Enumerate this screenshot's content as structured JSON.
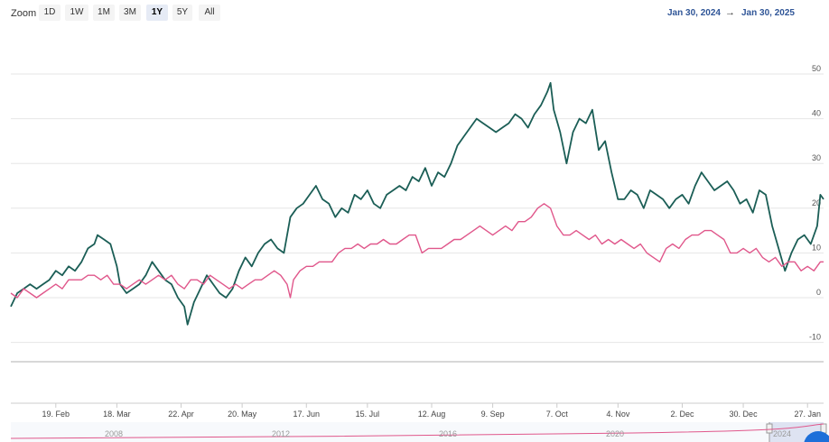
{
  "toolbar": {
    "zoom_label": "Zoom",
    "buttons": [
      "1D",
      "1W",
      "1M",
      "3M",
      "1Y",
      "5Y",
      "All"
    ],
    "active": "1Y",
    "range_from": "Jan 30, 2024",
    "range_arrow": "→",
    "range_to": "Jan 30, 2025"
  },
  "navigator": {
    "labels": [
      "2008",
      "2012",
      "2016",
      "2020",
      "2024"
    ]
  },
  "chart_data": {
    "type": "line",
    "y_ticks": [
      50,
      40,
      30,
      20,
      10,
      0,
      -10
    ],
    "ylim": [
      -14,
      55
    ],
    "x_ticks": [
      "19. Feb",
      "18. Mar",
      "22. Apr",
      "20. May",
      "17. Jun",
      "15. Jul",
      "12. Aug",
      "9. Sep",
      "7. Oct",
      "4. Nov",
      "2. Dec",
      "30. Dec",
      "27. Jan"
    ],
    "xlim": [
      0,
      253
    ],
    "x_tick_positions": [
      14,
      33,
      53,
      72,
      92,
      111,
      131,
      150,
      170,
      189,
      209,
      228,
      248
    ],
    "grid": true,
    "series": [
      {
        "color": "#1b5e56",
        "points": [
          [
            0,
            -2
          ],
          [
            2,
            1
          ],
          [
            4,
            2
          ],
          [
            6,
            3
          ],
          [
            8,
            2
          ],
          [
            10,
            3
          ],
          [
            12,
            4
          ],
          [
            14,
            6
          ],
          [
            16,
            5
          ],
          [
            18,
            7
          ],
          [
            20,
            6
          ],
          [
            22,
            8
          ],
          [
            24,
            11
          ],
          [
            26,
            12
          ],
          [
            27,
            14
          ],
          [
            29,
            13
          ],
          [
            31,
            12
          ],
          [
            33,
            7
          ],
          [
            34,
            3
          ],
          [
            36,
            1
          ],
          [
            38,
            2
          ],
          [
            40,
            3
          ],
          [
            42,
            5
          ],
          [
            44,
            8
          ],
          [
            46,
            6
          ],
          [
            48,
            4
          ],
          [
            50,
            3
          ],
          [
            52,
            0
          ],
          [
            54,
            -2
          ],
          [
            55,
            -6
          ],
          [
            57,
            -1
          ],
          [
            59,
            2
          ],
          [
            61,
            5
          ],
          [
            63,
            3
          ],
          [
            65,
            1
          ],
          [
            67,
            0
          ],
          [
            69,
            2
          ],
          [
            71,
            6
          ],
          [
            73,
            9
          ],
          [
            75,
            7
          ],
          [
            77,
            10
          ],
          [
            79,
            12
          ],
          [
            81,
            13
          ],
          [
            83,
            11
          ],
          [
            85,
            10
          ],
          [
            87,
            18
          ],
          [
            89,
            20
          ],
          [
            91,
            21
          ],
          [
            93,
            23
          ],
          [
            95,
            25
          ],
          [
            97,
            22
          ],
          [
            99,
            21
          ],
          [
            101,
            18
          ],
          [
            103,
            20
          ],
          [
            105,
            19
          ],
          [
            107,
            23
          ],
          [
            109,
            22
          ],
          [
            111,
            24
          ],
          [
            113,
            21
          ],
          [
            115,
            20
          ],
          [
            117,
            23
          ],
          [
            119,
            24
          ],
          [
            121,
            25
          ],
          [
            123,
            24
          ],
          [
            125,
            27
          ],
          [
            127,
            26
          ],
          [
            129,
            29
          ],
          [
            131,
            25
          ],
          [
            133,
            28
          ],
          [
            135,
            27
          ],
          [
            137,
            30
          ],
          [
            139,
            34
          ],
          [
            141,
            36
          ],
          [
            143,
            38
          ],
          [
            145,
            40
          ],
          [
            147,
            39
          ],
          [
            149,
            38
          ],
          [
            151,
            37
          ],
          [
            153,
            38
          ],
          [
            155,
            39
          ],
          [
            157,
            41
          ],
          [
            159,
            40
          ],
          [
            161,
            38
          ],
          [
            163,
            41
          ],
          [
            165,
            43
          ],
          [
            167,
            46
          ],
          [
            168,
            48
          ],
          [
            169,
            42
          ],
          [
            171,
            37
          ],
          [
            173,
            30
          ],
          [
            175,
            37
          ],
          [
            177,
            40
          ],
          [
            179,
            39
          ],
          [
            181,
            42
          ],
          [
            183,
            33
          ],
          [
            185,
            35
          ],
          [
            187,
            28
          ],
          [
            189,
            22
          ],
          [
            191,
            22
          ],
          [
            193,
            24
          ],
          [
            195,
            23
          ],
          [
            197,
            20
          ],
          [
            199,
            24
          ],
          [
            201,
            23
          ],
          [
            203,
            22
          ],
          [
            205,
            20
          ],
          [
            207,
            22
          ],
          [
            209,
            23
          ],
          [
            211,
            21
          ],
          [
            213,
            25
          ],
          [
            215,
            28
          ],
          [
            217,
            26
          ],
          [
            219,
            24
          ],
          [
            221,
            25
          ],
          [
            223,
            26
          ],
          [
            225,
            24
          ],
          [
            227,
            21
          ],
          [
            229,
            22
          ],
          [
            231,
            19
          ],
          [
            233,
            24
          ],
          [
            235,
            23
          ],
          [
            237,
            16
          ],
          [
            239,
            11
          ],
          [
            241,
            6
          ],
          [
            243,
            10
          ],
          [
            245,
            13
          ],
          [
            247,
            14
          ],
          [
            249,
            12
          ],
          [
            251,
            16
          ],
          [
            252,
            23
          ],
          [
            253,
            22
          ]
        ]
      },
      {
        "color": "#e0578b",
        "points": [
          [
            0,
            1
          ],
          [
            2,
            0
          ],
          [
            4,
            2
          ],
          [
            6,
            1
          ],
          [
            8,
            0
          ],
          [
            10,
            1
          ],
          [
            12,
            2
          ],
          [
            14,
            3
          ],
          [
            16,
            2
          ],
          [
            18,
            4
          ],
          [
            20,
            4
          ],
          [
            22,
            4
          ],
          [
            24,
            5
          ],
          [
            26,
            5
          ],
          [
            28,
            4
          ],
          [
            30,
            5
          ],
          [
            32,
            3
          ],
          [
            34,
            3
          ],
          [
            36,
            2
          ],
          [
            38,
            3
          ],
          [
            40,
            4
          ],
          [
            42,
            3
          ],
          [
            44,
            4
          ],
          [
            46,
            5
          ],
          [
            48,
            4
          ],
          [
            50,
            5
          ],
          [
            52,
            3
          ],
          [
            54,
            2
          ],
          [
            56,
            4
          ],
          [
            58,
            4
          ],
          [
            60,
            3
          ],
          [
            62,
            5
          ],
          [
            64,
            4
          ],
          [
            66,
            3
          ],
          [
            68,
            2
          ],
          [
            70,
            3
          ],
          [
            72,
            2
          ],
          [
            74,
            3
          ],
          [
            76,
            4
          ],
          [
            78,
            4
          ],
          [
            80,
            5
          ],
          [
            82,
            6
          ],
          [
            84,
            5
          ],
          [
            86,
            3
          ],
          [
            87,
            0
          ],
          [
            88,
            4
          ],
          [
            90,
            6
          ],
          [
            92,
            7
          ],
          [
            94,
            7
          ],
          [
            96,
            8
          ],
          [
            98,
            8
          ],
          [
            100,
            8
          ],
          [
            102,
            10
          ],
          [
            104,
            11
          ],
          [
            106,
            11
          ],
          [
            108,
            12
          ],
          [
            110,
            11
          ],
          [
            112,
            12
          ],
          [
            114,
            12
          ],
          [
            116,
            13
          ],
          [
            118,
            12
          ],
          [
            120,
            12
          ],
          [
            122,
            13
          ],
          [
            124,
            14
          ],
          [
            126,
            14
          ],
          [
            128,
            10
          ],
          [
            130,
            11
          ],
          [
            132,
            11
          ],
          [
            134,
            11
          ],
          [
            136,
            12
          ],
          [
            138,
            13
          ],
          [
            140,
            13
          ],
          [
            142,
            14
          ],
          [
            144,
            15
          ],
          [
            146,
            16
          ],
          [
            148,
            15
          ],
          [
            150,
            14
          ],
          [
            152,
            15
          ],
          [
            154,
            16
          ],
          [
            156,
            15
          ],
          [
            158,
            17
          ],
          [
            160,
            17
          ],
          [
            162,
            18
          ],
          [
            164,
            20
          ],
          [
            166,
            21
          ],
          [
            168,
            20
          ],
          [
            170,
            16
          ],
          [
            172,
            14
          ],
          [
            174,
            14
          ],
          [
            176,
            15
          ],
          [
            178,
            14
          ],
          [
            180,
            13
          ],
          [
            182,
            14
          ],
          [
            184,
            12
          ],
          [
            186,
            13
          ],
          [
            188,
            12
          ],
          [
            190,
            13
          ],
          [
            192,
            12
          ],
          [
            194,
            11
          ],
          [
            196,
            12
          ],
          [
            198,
            10
          ],
          [
            200,
            9
          ],
          [
            202,
            8
          ],
          [
            204,
            11
          ],
          [
            206,
            12
          ],
          [
            208,
            11
          ],
          [
            210,
            13
          ],
          [
            212,
            14
          ],
          [
            214,
            14
          ],
          [
            216,
            15
          ],
          [
            218,
            15
          ],
          [
            220,
            14
          ],
          [
            222,
            13
          ],
          [
            224,
            10
          ],
          [
            226,
            10
          ],
          [
            228,
            11
          ],
          [
            230,
            10
          ],
          [
            232,
            11
          ],
          [
            234,
            9
          ],
          [
            236,
            8
          ],
          [
            238,
            9
          ],
          [
            240,
            7
          ],
          [
            242,
            8
          ],
          [
            244,
            8
          ],
          [
            246,
            6
          ],
          [
            248,
            7
          ],
          [
            250,
            6
          ],
          [
            252,
            8
          ],
          [
            253,
            8
          ]
        ]
      }
    ]
  }
}
